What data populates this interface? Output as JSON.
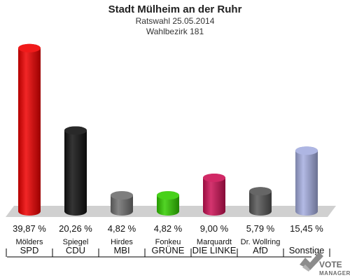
{
  "title": "Stadt Mülheim an der Ruhr",
  "subtitle_1": "Ratswahl 25.05.2014",
  "subtitle_2": "Wahlbezirk 181",
  "logo": {
    "line1": "VOTE",
    "line2": "MANAGER"
  },
  "chart_data": {
    "type": "bar",
    "title": "Stadt Mülheim an der Ruhr",
    "subtitles": [
      "Ratswahl 25.05.2014",
      "Wahlbezirk 181"
    ],
    "categories": [
      "SPD",
      "CDU",
      "MBI",
      "GRÜNE",
      "DIE LINKE",
      "AfD",
      "Sonstige"
    ],
    "candidates": [
      "Mölders",
      "Spiegel",
      "Hirdes",
      "Fonkeu",
      "Marquardt",
      "Dr. Wollring",
      ""
    ],
    "values": [
      39.87,
      20.26,
      4.82,
      4.82,
      9.0,
      5.79,
      15.45
    ],
    "value_labels": [
      "39,87 %",
      "20,26 %",
      "4,82 %",
      "4,82 %",
      "9,00 %",
      "5,79 %",
      "15,45 %"
    ],
    "colors": [
      "#ee0000",
      "#111111",
      "#707070",
      "#33cc00",
      "#cc1155",
      "#555555",
      "#a5aee0"
    ],
    "unit": "%",
    "ylim": [
      0,
      40
    ],
    "grid": false,
    "legend": "none"
  }
}
